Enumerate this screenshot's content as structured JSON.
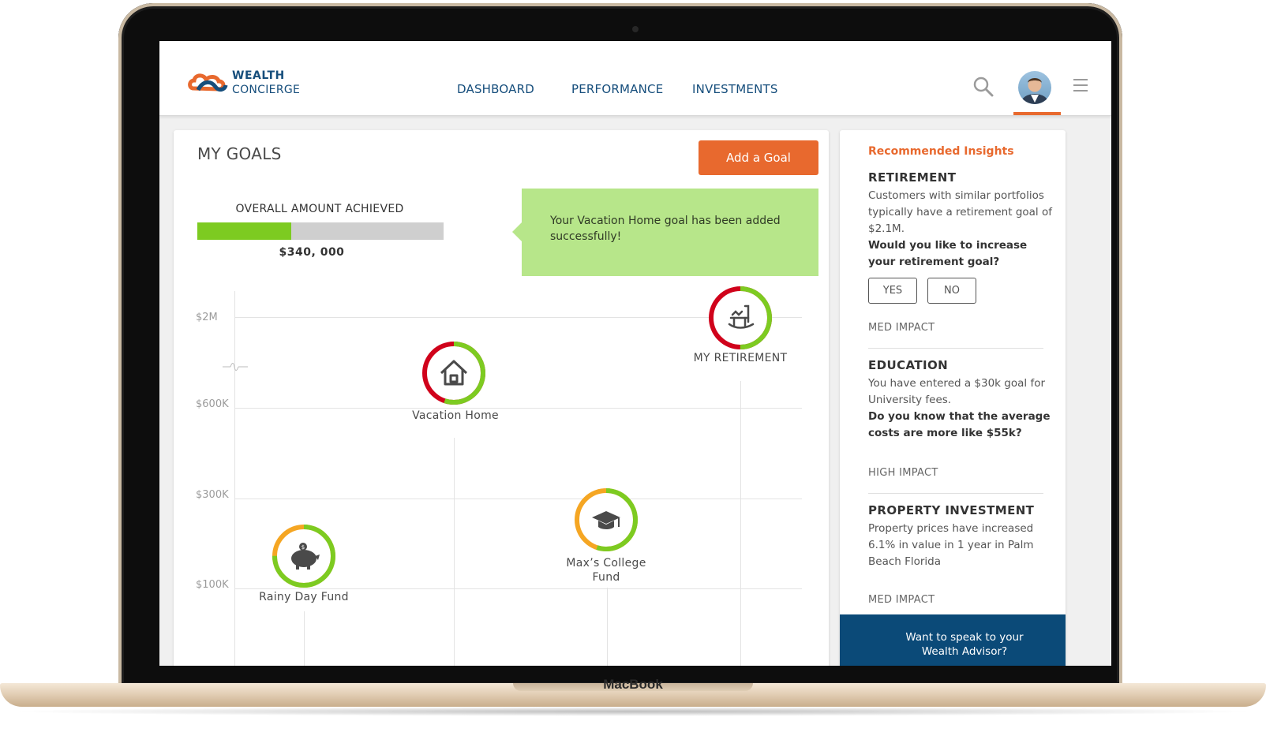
{
  "device": {
    "brand": "MacBook"
  },
  "header": {
    "logo_line1": "WEALTH",
    "logo_line2": "CONCIERGE",
    "nav": [
      {
        "label": "DASHBOARD"
      },
      {
        "label": "PERFORMANCE"
      },
      {
        "label": "INVESTMENTS"
      }
    ],
    "icons": {
      "search": "search-icon",
      "avatar": "user-avatar",
      "menu": "hamburger-menu-icon"
    },
    "accent_color": "#e8692e",
    "brand_color": "#164e7c"
  },
  "goals": {
    "title": "MY GOALS",
    "add_button": "Add a Goal",
    "overall_label": "OVERALL AMOUNT ACHIEVED",
    "overall_amount": "$340, 000",
    "overall_progress": 0.38,
    "toast": "Your Vacation Home goal has been added successfully!",
    "y_ticks": [
      "$2M",
      "$600K",
      "$300K",
      "$100K"
    ],
    "items": [
      {
        "label": "Rainy Day Fund",
        "icon": "piggy-bank-icon",
        "progress": 0.75,
        "remainder_color": "#f5a623"
      },
      {
        "label": "Vacation Home",
        "icon": "house-icon",
        "progress": 0.55,
        "remainder_color": "#d0021b"
      },
      {
        "label": "Max’s College Fund",
        "icon": "graduation-cap-icon",
        "progress": 0.55,
        "remainder_color": "#f5a623"
      },
      {
        "label": "MY RETIREMENT",
        "icon": "rocking-chair-icon",
        "progress": 0.5,
        "remainder_color": "#d0021b"
      }
    ]
  },
  "insights": {
    "heading": "Recommended Insights",
    "retirement": {
      "title": "RETIREMENT",
      "body": "Customers with similar portfolios typically have a retirement goal of $2.1M.",
      "question": "Would you like to increase your retirement goal?",
      "yes": "YES",
      "no": "NO",
      "impact": "MED IMPACT"
    },
    "education": {
      "title": "EDUCATION",
      "body": "You have entered a $30k goal for University fees.",
      "question": "Do you know that the average costs are more like $55k?",
      "impact": "HIGH IMPACT"
    },
    "property": {
      "title": "PROPERTY INVESTMENT",
      "body": "Property prices have increased 6.1% in value in 1 year in Palm Beach Florida",
      "impact": "MED IMPACT"
    },
    "advisor_line1": "Want to speak to your",
    "advisor_line2": "Wealth Advisor?"
  }
}
